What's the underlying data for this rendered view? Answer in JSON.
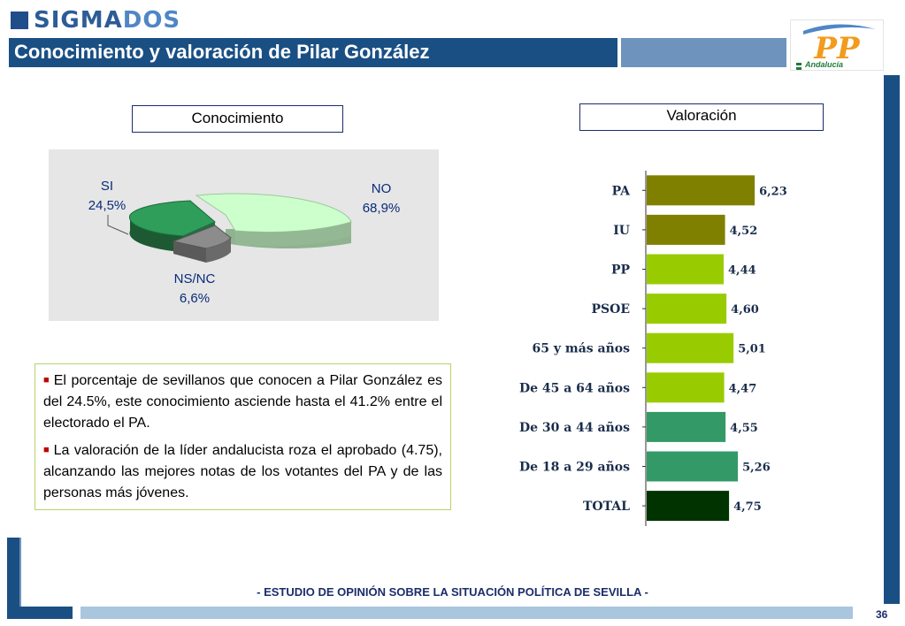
{
  "brand": {
    "name_part1": "SIGMA",
    "name_part2": "DOS"
  },
  "header": {
    "title": "Conocimiento y valoración de Pilar González"
  },
  "logo": {
    "mark": "PP",
    "subtitle": "Andalucía"
  },
  "colors": {
    "header_blue": "#1a4f84",
    "header_light_blue": "#6e93bd",
    "pp_orange": "#f29b1d",
    "footer_light": "#a9c6de"
  },
  "conocimiento": {
    "heading": "Conocimiento",
    "slices": [
      {
        "name": "SI",
        "value": "24,5%",
        "color": "#2e9e5a"
      },
      {
        "name": "NO",
        "value": "68,9%",
        "color": "#ccffcc"
      },
      {
        "name": "NS/NC",
        "value": "6,6%",
        "color": "#808080"
      }
    ]
  },
  "valoracion": {
    "heading": "Valoración"
  },
  "summary": {
    "bullets": [
      "El porcentaje de sevillanos que conocen a Pilar González es del 24.5%, este conocimiento asciende hasta el 41.2% entre el electorado el PA.",
      "La valoración de la líder andalucista roza el aprobado (4.75), alcanzando las mejores notas de los votantes del PA y de las personas más jóvenes."
    ]
  },
  "chart_data": [
    {
      "type": "pie",
      "title": "Conocimiento",
      "categories": [
        "SI",
        "NO",
        "NS/NC"
      ],
      "values": [
        24.5,
        68.9,
        6.6
      ],
      "labels": [
        "24,5%",
        "68,9%",
        "6,6%"
      ],
      "colors": [
        "#2e9e5a",
        "#ccffcc",
        "#808080"
      ]
    },
    {
      "type": "bar",
      "orientation": "horizontal",
      "title": "Valoración",
      "categories": [
        "PA",
        "IU",
        "PP",
        "PSOE",
        "65 y más años",
        "De 45 a 64 años",
        "De 30 a 44 años",
        "De 18 a 29 años",
        "TOTAL"
      ],
      "values": [
        6.23,
        4.52,
        4.44,
        4.6,
        5.01,
        4.47,
        4.55,
        5.26,
        4.75
      ],
      "value_labels": [
        "6,23",
        "4,52",
        "4,44",
        "4,60",
        "5,01",
        "4,47",
        "4,55",
        "5,26",
        "4,75"
      ],
      "colors": [
        "#808000",
        "#808000",
        "#99cc00",
        "#99cc00",
        "#99cc00",
        "#99cc00",
        "#339966",
        "#339966",
        "#003300"
      ],
      "xlim": [
        0,
        7
      ],
      "grid": false
    }
  ],
  "footer": {
    "study": "- ESTUDIO DE OPINIÓN SOBRE LA SITUACIÓN POLÍTICA DE SEVILLA  -",
    "page": "36"
  }
}
